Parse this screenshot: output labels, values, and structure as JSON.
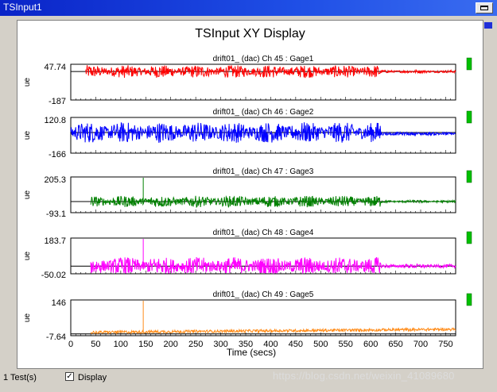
{
  "window": {
    "title": "TSInput1",
    "accent_color": "#0a24c8"
  },
  "panel": {
    "title": "TSInput XY Display"
  },
  "chart_data": {
    "type": "line",
    "xlabel": "Time (secs)",
    "xlim": [
      0,
      770
    ],
    "xticks": [
      0,
      50,
      100,
      150,
      200,
      250,
      300,
      350,
      400,
      450,
      500,
      550,
      600,
      650,
      700,
      750
    ],
    "subplots": [
      {
        "title": "drift01_ (dac)  Ch 45 : Gage1",
        "ylabel": "ue",
        "ymax_label": "47.74",
        "ymin_label": "-187",
        "ylim": [
          -187,
          47.74
        ],
        "color": "#ff0000",
        "x_start": 30,
        "x_end": 770,
        "baseline": 0,
        "amplitude": 35,
        "indicator_color": "#00c000"
      },
      {
        "title": "drift01_ (dac)  Ch 46 : Gage2",
        "ylabel": "ue",
        "ymax_label": "120.8",
        "ymin_label": "-166",
        "ylim": [
          -166,
          120.8
        ],
        "color": "#0000ff",
        "x_start": 0,
        "x_end": 770,
        "baseline": 0,
        "amplitude": 70,
        "indicator_color": "#00c000"
      },
      {
        "title": "drift01_ (dac)  Ch 47 : Gage3",
        "ylabel": "ue",
        "ymax_label": "205.3",
        "ymin_label": "-93.1",
        "ylim": [
          -93.1,
          205.3
        ],
        "color": "#008000",
        "x_start": 40,
        "x_end": 770,
        "baseline": 0,
        "amplitude": 40,
        "indicator_color": "#00c000"
      },
      {
        "title": "drift01_ (dac)  Ch 48 : Gage4",
        "ylabel": "ue",
        "ymax_label": "183.7",
        "ymin_label": "-50.02",
        "ylim": [
          -50.02,
          183.7
        ],
        "color": "#ff00ff",
        "x_start": 40,
        "x_end": 770,
        "baseline": 0,
        "amplitude": 50,
        "indicator_color": "#00c000"
      },
      {
        "title": "drift01_ (dac)  Ch 49 : Gage5",
        "ylabel": "ue",
        "ymax_label": "146",
        "ymin_label": "-7.64",
        "ylim": [
          -7.64,
          146
        ],
        "color": "#ff8c1a",
        "x_start": 40,
        "x_end": 770,
        "baseline": 0,
        "amplitude": 12,
        "indicator_color": "#00c000"
      }
    ]
  },
  "status": {
    "tests": "1 Test(s)",
    "display_label": "Display",
    "display_checked": "✓"
  },
  "watermark": "https://blog.csdn.net/weixin_41089680"
}
